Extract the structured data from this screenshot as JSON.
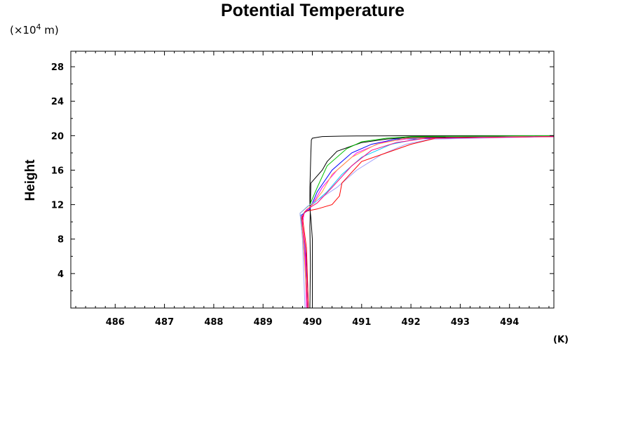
{
  "chart_data": {
    "type": "line",
    "title": "Potential Temperature",
    "ylabel": "Height",
    "xlabel": "(K)",
    "y_units": "(×10",
    "y_units_exp": "4",
    "y_units_suffix": " m)",
    "xlim": [
      485.1,
      494.9
    ],
    "ylim": [
      0,
      29.8
    ],
    "x_ticks": [
      486,
      487,
      488,
      489,
      490,
      491,
      492,
      493,
      494
    ],
    "x_tick_labels": [
      "486",
      "487",
      "488",
      "489",
      "490",
      "491",
      "492",
      "493",
      "494"
    ],
    "y_ticks": [
      4,
      8,
      12,
      16,
      20,
      24,
      28
    ],
    "y_tick_labels": [
      "4",
      "8",
      "12",
      "16",
      "20",
      "24",
      "28"
    ],
    "grid": false,
    "series": [
      {
        "color": "#000000",
        "x": [
          490.0,
          490.0,
          489.97,
          489.95,
          489.95,
          489.97,
          489.98,
          490.0,
          490.1,
          490.2,
          490.6,
          491.0,
          491.5,
          492.0,
          494.9
        ],
        "y": [
          0.0,
          8.0,
          10.5,
          11.5,
          14.0,
          18.0,
          19.5,
          19.7,
          19.8,
          19.9,
          19.95,
          19.97,
          19.98,
          20.0,
          20.0
        ]
      },
      {
        "color": "#000000",
        "x": [
          489.95,
          489.96,
          489.95,
          489.97,
          490.2,
          490.3,
          490.5,
          491.0,
          491.5,
          492.0,
          494.9
        ],
        "y": [
          0.0,
          5.0,
          9.5,
          14.5,
          16.0,
          17.0,
          18.2,
          19.2,
          19.6,
          19.8,
          19.9
        ]
      },
      {
        "color": "#00c000",
        "x": [
          489.9,
          489.85,
          489.8,
          489.75,
          489.95,
          490.1,
          490.3,
          490.7,
          491.0,
          491.5,
          492.0,
          494.9
        ],
        "y": [
          0.0,
          5.0,
          9.0,
          11.0,
          12.0,
          14.0,
          16.5,
          18.5,
          19.3,
          19.7,
          19.9,
          20.0
        ]
      },
      {
        "color": "#0000ff",
        "x": [
          489.92,
          489.88,
          489.8,
          489.78,
          489.95,
          490.1,
          490.4,
          490.8,
          491.2,
          491.7,
          494.9
        ],
        "y": [
          0.0,
          6.0,
          9.0,
          10.8,
          11.5,
          13.5,
          16.0,
          18.0,
          19.0,
          19.6,
          19.9
        ]
      },
      {
        "color": "#00c8ff",
        "x": [
          489.9,
          489.85,
          489.78,
          489.82,
          490.0,
          490.3,
          490.6,
          491.0,
          491.6,
          492.2,
          494.9
        ],
        "y": [
          0.0,
          7.0,
          10.0,
          11.0,
          12.0,
          13.5,
          15.5,
          17.5,
          19.0,
          19.7,
          19.9
        ]
      },
      {
        "color": "#ff00ff",
        "x": [
          489.88,
          489.85,
          489.8,
          489.83,
          490.0,
          490.2,
          490.5,
          490.9,
          491.4,
          492.0,
          494.9
        ],
        "y": [
          0.0,
          6.0,
          9.5,
          11.0,
          12.0,
          14.0,
          16.0,
          18.0,
          19.2,
          19.7,
          19.9
        ]
      },
      {
        "color": "#ffa040",
        "x": [
          489.9,
          489.82,
          489.78,
          489.85,
          490.0,
          490.2,
          490.4,
          490.8,
          491.3,
          491.9,
          494.9
        ],
        "y": [
          0.0,
          7.5,
          10.5,
          11.2,
          12.0,
          13.5,
          15.5,
          17.5,
          19.0,
          19.7,
          19.9
        ]
      },
      {
        "color": "#a0a0ff",
        "x": [
          489.85,
          489.8,
          489.75,
          489.9,
          490.1,
          490.5,
          490.9,
          491.4,
          491.9,
          492.4,
          494.9
        ],
        "y": [
          0.0,
          8.0,
          11.0,
          11.8,
          12.5,
          14.0,
          16.0,
          17.8,
          19.0,
          19.6,
          19.9
        ]
      },
      {
        "color": "#ff0000",
        "x": [
          489.92,
          489.88,
          489.8,
          489.85,
          490.1,
          490.4,
          490.55,
          490.6,
          491.0,
          491.5,
          492.0,
          492.5,
          494.9
        ],
        "y": [
          0.0,
          7.0,
          10.5,
          11.2,
          11.5,
          12.0,
          13.0,
          14.5,
          17.0,
          18.0,
          19.0,
          19.7,
          19.9
        ]
      },
      {
        "color": "#ff0080",
        "x": [
          489.9,
          489.86,
          489.78,
          489.88,
          490.1,
          490.4,
          490.8,
          491.2,
          491.7,
          492.3,
          494.9
        ],
        "y": [
          0.0,
          7.0,
          10.5,
          11.4,
          12.2,
          14.0,
          16.5,
          18.3,
          19.2,
          19.7,
          19.9
        ]
      }
    ]
  }
}
